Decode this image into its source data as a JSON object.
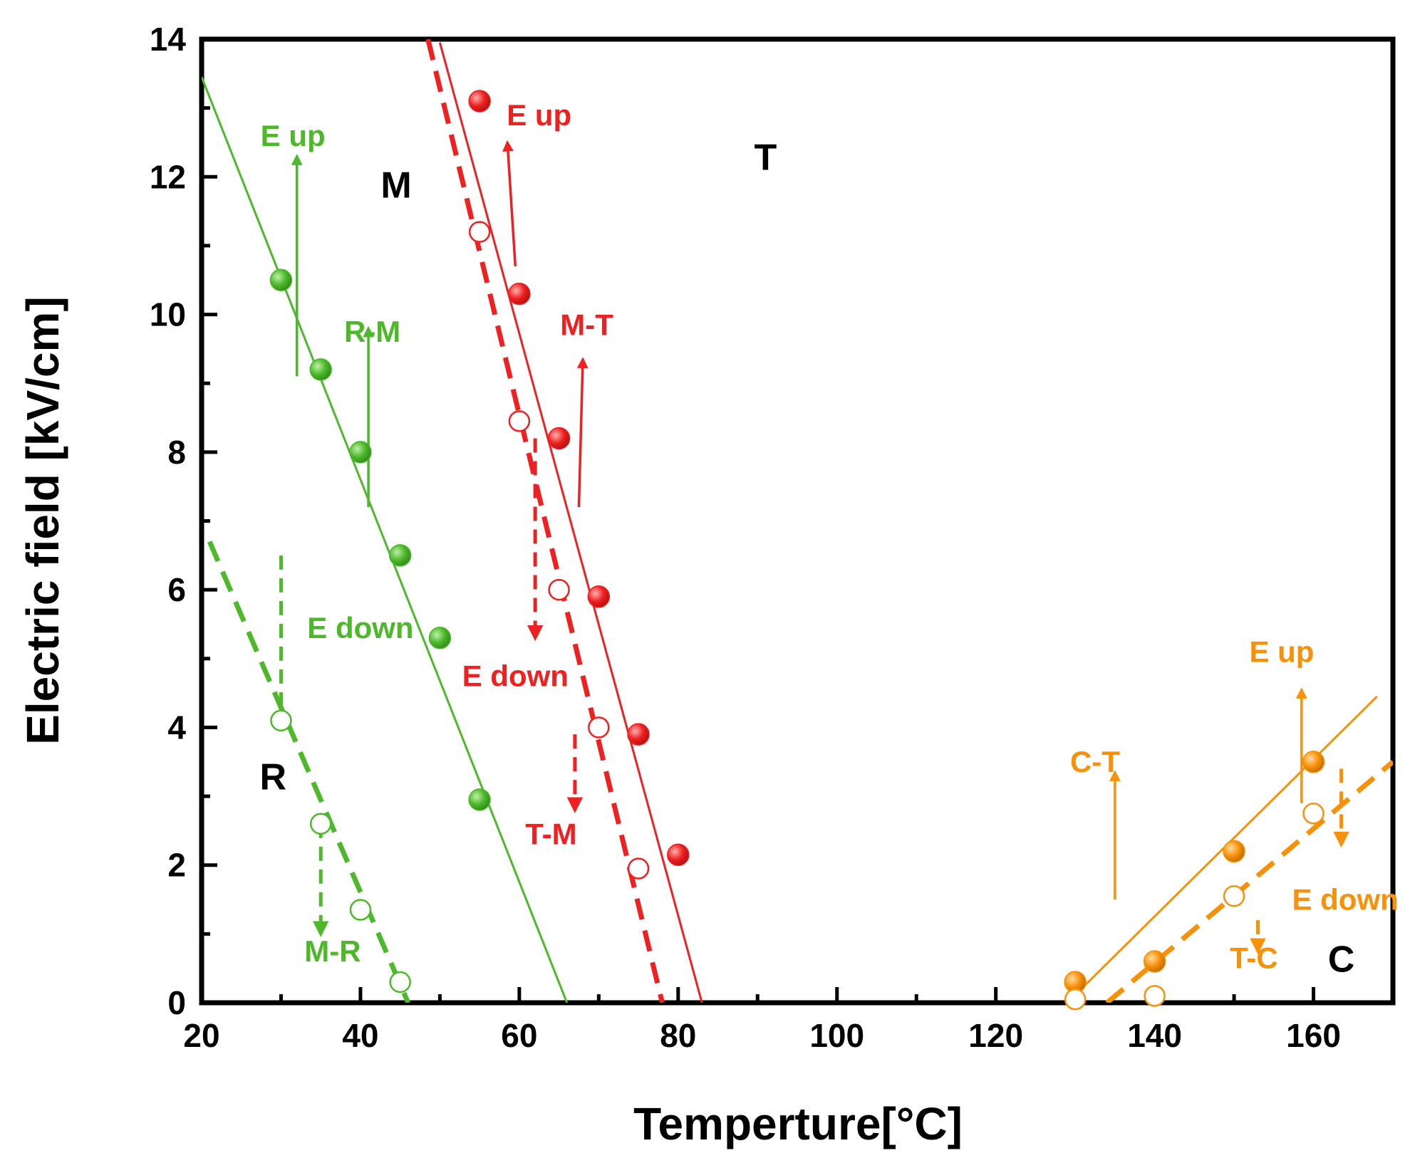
{
  "chart_data": {
    "type": "scatter",
    "xlabel": "Temperture[°C]",
    "ylabel": "Electric field [kV/cm]",
    "xlim": [
      20,
      170
    ],
    "ylim": [
      0,
      14
    ],
    "xticks": [
      "20",
      "40",
      "60",
      "80",
      "100",
      "120",
      "140",
      "160"
    ],
    "yticks": [
      "0",
      "2",
      "4",
      "6",
      "8",
      "10",
      "12",
      "14"
    ],
    "colors": {
      "green": "#4cb82a",
      "red": "#ee2020",
      "orange": "#f7910a"
    },
    "series": [
      {
        "name": "R-M (E up)",
        "color": "green",
        "marker": "filled",
        "x": [
          30,
          35,
          40,
          45,
          50,
          55
        ],
        "y": [
          10.5,
          9.2,
          8.0,
          6.5,
          5.3,
          2.95
        ],
        "fit": {
          "x": [
            20,
            66
          ],
          "y": [
            13.45,
            0
          ],
          "style": "solid"
        }
      },
      {
        "name": "M-R (E down)",
        "color": "green",
        "marker": "open",
        "x": [
          30,
          35,
          40,
          45
        ],
        "y": [
          4.1,
          2.6,
          1.35,
          0.3
        ],
        "fit": {
          "x": [
            21,
            46
          ],
          "y": [
            6.7,
            0
          ],
          "style": "dashed"
        }
      },
      {
        "name": "M-T (E up)",
        "color": "red",
        "marker": "filled",
        "x": [
          55,
          60,
          65,
          70,
          75,
          80
        ],
        "y": [
          13.1,
          10.3,
          8.2,
          5.9,
          3.9,
          2.15
        ],
        "fit": {
          "x": [
            50,
            83
          ],
          "y": [
            13.95,
            0
          ],
          "style": "solid"
        }
      },
      {
        "name": "T-M (E down)",
        "color": "red",
        "marker": "open",
        "x": [
          55,
          60,
          65,
          70,
          75
        ],
        "y": [
          11.2,
          8.45,
          6.0,
          4.0,
          1.95
        ],
        "fit": {
          "x": [
            48.5,
            78
          ],
          "y": [
            14.0,
            0
          ],
          "style": "dashed"
        }
      },
      {
        "name": "C-T (E up)",
        "color": "orange",
        "marker": "filled",
        "x": [
          130,
          140,
          150,
          160
        ],
        "y": [
          0.3,
          0.6,
          2.2,
          3.5
        ],
        "fit": {
          "x": [
            129,
            168
          ],
          "y": [
            0,
            4.45
          ],
          "style": "solid"
        }
      },
      {
        "name": "T-C (E down)",
        "color": "orange",
        "marker": "open",
        "x": [
          130,
          140,
          150,
          160
        ],
        "y": [
          0.05,
          0.1,
          1.55,
          2.75
        ],
        "fit": {
          "x": [
            134,
            170
          ],
          "y": [
            0,
            3.5
          ],
          "style": "dashed"
        }
      }
    ],
    "phase_labels": [
      {
        "text": "M",
        "x": 44.5,
        "y": 11.7
      },
      {
        "text": "T",
        "x": 91,
        "y": 12.1
      },
      {
        "text": "R",
        "x": 29,
        "y": 3.1
      },
      {
        "text": "C",
        "x": 163.5,
        "y": 0.45
      }
    ],
    "annotations": [
      {
        "text": "E up",
        "color": "green",
        "x": 31.5,
        "y": 12.45
      },
      {
        "text": "R-M",
        "color": "green",
        "x": 41.5,
        "y": 9.6
      },
      {
        "text": "E down",
        "color": "green",
        "x": 40,
        "y": 5.3
      },
      {
        "text": "M-R",
        "color": "green",
        "x": 36.5,
        "y": 0.6
      },
      {
        "text": "E up",
        "color": "red",
        "x": 62.5,
        "y": 12.75
      },
      {
        "text": "M-T",
        "color": "red",
        "x": 68.5,
        "y": 9.7
      },
      {
        "text": "E down",
        "color": "red",
        "x": 59.5,
        "y": 4.6
      },
      {
        "text": "T-M",
        "color": "red",
        "x": 64,
        "y": 2.3
      },
      {
        "text": "E up",
        "color": "orange",
        "x": 156,
        "y": 4.95
      },
      {
        "text": "C-T",
        "color": "orange",
        "x": 132.5,
        "y": 3.35
      },
      {
        "text": "E down",
        "color": "orange",
        "x": 164,
        "y": 1.35
      },
      {
        "text": "T-C",
        "color": "orange",
        "x": 152.5,
        "y": 0.5
      }
    ],
    "arrows": [
      {
        "color": "green",
        "style": "solid",
        "x": 32,
        "y1": 9.1,
        "y2": 12.3
      },
      {
        "color": "green",
        "style": "solid",
        "x": 41,
        "y1": 7.2,
        "y2": 9.8
      },
      {
        "color": "green",
        "style": "dashed",
        "x": 30,
        "y1": 6.5,
        "y2": 4.0
      },
      {
        "color": "green",
        "style": "dashed",
        "x": 35,
        "y1": 2.6,
        "y2": 1.0
      },
      {
        "color": "red",
        "style": "solid",
        "x1": 59.5,
        "y1": 10.7,
        "x2": 58.5,
        "y2": 12.5
      },
      {
        "color": "red",
        "style": "solid",
        "x1": 67.5,
        "y1": 7.2,
        "x2": 68,
        "y2": 9.35
      },
      {
        "color": "red",
        "style": "dashed",
        "x": 62,
        "y1": 8.2,
        "y2": 5.3
      },
      {
        "color": "red",
        "style": "dashed",
        "x": 67,
        "y1": 3.9,
        "y2": 2.8
      },
      {
        "color": "orange",
        "style": "solid",
        "x": 135,
        "y1": 1.5,
        "y2": 3.35
      },
      {
        "color": "orange",
        "style": "solid",
        "x": 158.5,
        "y1": 2.9,
        "y2": 4.55
      },
      {
        "color": "orange",
        "style": "dashed",
        "x": 163.5,
        "y1": 3.4,
        "y2": 2.3
      },
      {
        "color": "orange",
        "style": "dashed",
        "x": 153,
        "y1": 1.2,
        "y2": 0.75
      }
    ]
  }
}
